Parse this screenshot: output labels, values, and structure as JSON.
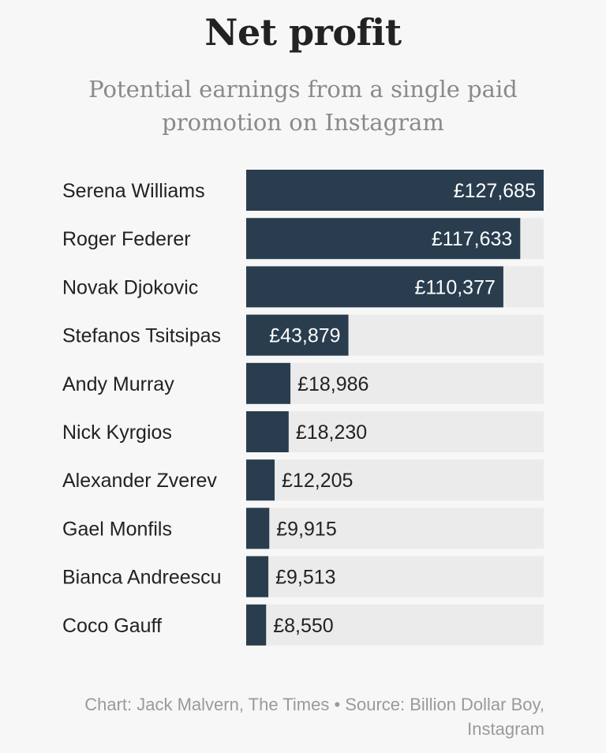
{
  "header": {
    "title": "Net profit",
    "subtitle": "Potential earnings from a single paid promotion on Instagram"
  },
  "footer": {
    "credit": "Chart: Jack Malvern, The Times • Source: Billion Dollar Boy, Instagram"
  },
  "colors": {
    "bar": "#293d4e",
    "track": "#ebebeb",
    "label": "#222222",
    "value_inside": "#ffffff",
    "value_outside": "#222222"
  },
  "chart_data": {
    "type": "bar",
    "orientation": "horizontal",
    "title": "Net profit",
    "subtitle": "Potential earnings from a single paid promotion on Instagram",
    "categories": [
      "Serena Williams",
      "Roger Federer",
      "Novak Djokovic",
      "Stefanos Tsitsipas",
      "Andy Murray",
      "Nick Kyrgios",
      "Alexander Zverev",
      "Gael Monfils",
      "Bianca Andreescu",
      "Coco Gauff"
    ],
    "values": [
      127685,
      117633,
      110377,
      43879,
      18986,
      18230,
      12205,
      9915,
      9513,
      8550
    ],
    "value_labels": [
      "£127,685",
      "£117,633",
      "£110,377",
      "£43,879",
      "£18,986",
      "£18,230",
      "£12,205",
      "£9,915",
      "£9,513",
      "£8,550"
    ],
    "xlim": [
      0,
      127685
    ],
    "grid": false,
    "legend": "none"
  }
}
